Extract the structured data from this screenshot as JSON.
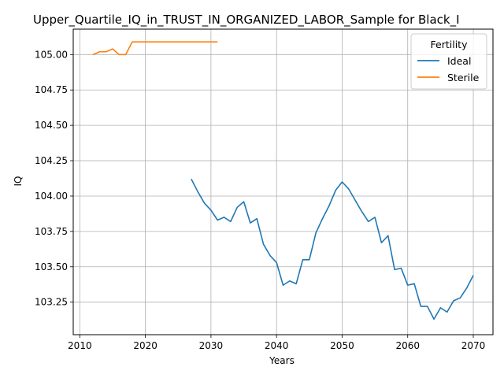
{
  "chart_data": {
    "type": "line",
    "title": "Upper_Quartile_IQ_in_TRUST_IN_ORGANIZED_LABOR_Sample for Black_I",
    "xlabel": "Years",
    "ylabel": "IQ",
    "xlim": [
      2009,
      2073
    ],
    "ylim": [
      103.02,
      105.18
    ],
    "xticks": [
      2010,
      2020,
      2030,
      2040,
      2050,
      2060,
      2070
    ],
    "xtick_labels": [
      "2010",
      "2020",
      "2030",
      "2040",
      "2050",
      "2060",
      "2070"
    ],
    "yticks": [
      103.25,
      103.5,
      103.75,
      104.0,
      104.25,
      104.5,
      104.75,
      105.0
    ],
    "ytick_labels": [
      "103.25",
      "103.50",
      "103.75",
      "104.00",
      "104.25",
      "104.50",
      "104.75",
      "105.00"
    ],
    "grid": true,
    "legend": {
      "title": "Fertility",
      "placement": "top-right"
    },
    "series": [
      {
        "name": "Ideal",
        "color": "#1f77b4",
        "x": [
          2027,
          2028,
          2029,
          2030,
          2031,
          2032,
          2033,
          2034,
          2035,
          2036,
          2037,
          2038,
          2039,
          2040,
          2041,
          2042,
          2043,
          2044,
          2045,
          2046,
          2047,
          2048,
          2049,
          2050,
          2051,
          2052,
          2053,
          2054,
          2055,
          2056,
          2057,
          2058,
          2059,
          2060,
          2061,
          2062,
          2063,
          2064,
          2065,
          2066,
          2067,
          2068,
          2069,
          2070
        ],
        "y": [
          104.12,
          104.03,
          103.95,
          103.9,
          103.83,
          103.85,
          103.82,
          103.92,
          103.96,
          103.81,
          103.84,
          103.66,
          103.58,
          103.53,
          103.37,
          103.4,
          103.38,
          103.55,
          103.55,
          103.74,
          103.84,
          103.93,
          104.04,
          104.1,
          104.05,
          103.97,
          103.89,
          103.82,
          103.85,
          103.67,
          103.72,
          103.48,
          103.49,
          103.37,
          103.38,
          103.22,
          103.22,
          103.13,
          103.21,
          103.18,
          103.26,
          103.28,
          103.35,
          103.44
        ]
      },
      {
        "name": "Sterile",
        "color": "#ff7f0e",
        "x": [
          2012,
          2013,
          2014,
          2015,
          2016,
          2017,
          2018,
          2019,
          2020,
          2021,
          2022,
          2023,
          2024,
          2025,
          2026,
          2027,
          2028,
          2029,
          2030,
          2031
        ],
        "y": [
          105.0,
          105.02,
          105.02,
          105.04,
          105.0,
          105.0,
          105.09,
          105.09,
          105.09,
          105.09,
          105.09,
          105.09,
          105.09,
          105.09,
          105.09,
          105.09,
          105.09,
          105.09,
          105.09,
          105.09
        ]
      }
    ]
  }
}
